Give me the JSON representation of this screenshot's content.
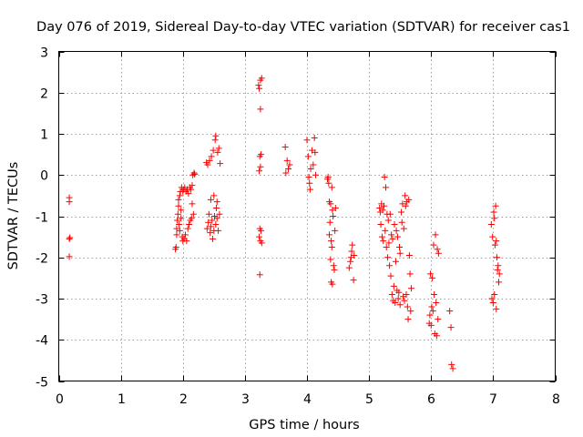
{
  "chart_data": {
    "type": "scatter",
    "title": "Day 076 of 2019, Sidereal Day-to-day VTEC variation (SDTVAR) for receiver cas1",
    "xlabel": "GPS time / hours",
    "ylabel": "SDTVAR / TECUs",
    "xlim": [
      0,
      8
    ],
    "ylim": [
      -5,
      3
    ],
    "xticks": [
      0,
      1,
      2,
      3,
      4,
      5,
      6,
      7,
      8
    ],
    "yticks": [
      -5,
      -4,
      -3,
      -2,
      -1,
      0,
      1,
      2,
      3
    ],
    "grid": true,
    "marker": "+",
    "color": "#ff0000",
    "series": [
      {
        "name": "cas1",
        "points": [
          [
            0.17,
            -0.55
          ],
          [
            0.17,
            -0.65
          ],
          [
            0.17,
            -1.55
          ],
          [
            0.18,
            -1.52
          ],
          [
            0.17,
            -1.98
          ],
          [
            1.88,
            -1.8
          ],
          [
            1.89,
            -1.75
          ],
          [
            1.9,
            -1.45
          ],
          [
            1.9,
            -1.3
          ],
          [
            1.91,
            -1.1
          ],
          [
            1.92,
            -0.95
          ],
          [
            1.93,
            -0.75
          ],
          [
            1.93,
            -0.6
          ],
          [
            1.94,
            -1.2
          ],
          [
            1.95,
            -1.35
          ],
          [
            1.95,
            -0.5
          ],
          [
            1.96,
            -0.4
          ],
          [
            1.97,
            -1.05
          ],
          [
            1.97,
            -0.85
          ],
          [
            1.98,
            -0.3
          ],
          [
            1.99,
            -1.5
          ],
          [
            2.0,
            -0.4
          ],
          [
            2.0,
            -1.6
          ],
          [
            2.01,
            -0.35
          ],
          [
            2.02,
            -1.55
          ],
          [
            2.03,
            -0.3
          ],
          [
            2.04,
            -1.45
          ],
          [
            2.05,
            -0.4
          ],
          [
            2.06,
            -1.6
          ],
          [
            2.07,
            -0.35
          ],
          [
            2.08,
            -1.3
          ],
          [
            2.09,
            -0.45
          ],
          [
            2.1,
            -1.2
          ],
          [
            2.11,
            -0.3
          ],
          [
            2.12,
            -1.1
          ],
          [
            2.13,
            -0.35
          ],
          [
            2.14,
            -1.05
          ],
          [
            2.15,
            -0.25
          ],
          [
            2.15,
            -0.7
          ],
          [
            2.16,
            0.0
          ],
          [
            2.17,
            -0.95
          ],
          [
            2.18,
            0.05
          ],
          [
            2.19,
            0.02
          ],
          [
            2.38,
            0.3
          ],
          [
            2.39,
            -1.3
          ],
          [
            2.4,
            0.25
          ],
          [
            2.41,
            -1.15
          ],
          [
            2.42,
            -0.95
          ],
          [
            2.43,
            0.35
          ],
          [
            2.44,
            -1.4
          ],
          [
            2.45,
            -0.6
          ],
          [
            2.46,
            0.45
          ],
          [
            2.47,
            -1.1
          ],
          [
            2.48,
            -1.55
          ],
          [
            2.49,
            0.6
          ],
          [
            2.5,
            -0.5
          ],
          [
            2.51,
            -1.0
          ],
          [
            2.52,
            0.85
          ],
          [
            2.53,
            0.95
          ],
          [
            2.53,
            -1.2
          ],
          [
            2.54,
            -0.8
          ],
          [
            2.55,
            -0.65
          ],
          [
            2.56,
            0.55
          ],
          [
            2.57,
            -1.35
          ],
          [
            2.58,
            0.65
          ],
          [
            2.59,
            -0.95
          ],
          [
            2.6,
            0.28
          ],
          [
            2.45,
            -1.25
          ],
          [
            2.5,
            -1.35
          ],
          [
            2.55,
            -1.05
          ],
          [
            3.23,
            2.1
          ],
          [
            3.25,
            2.3
          ],
          [
            3.27,
            2.35
          ],
          [
            3.22,
            2.18
          ],
          [
            3.25,
            1.6
          ],
          [
            3.24,
            0.45
          ],
          [
            3.26,
            0.5
          ],
          [
            3.23,
            0.1
          ],
          [
            3.25,
            0.2
          ],
          [
            3.24,
            -1.3
          ],
          [
            3.26,
            -1.35
          ],
          [
            3.23,
            -1.5
          ],
          [
            3.25,
            -1.6
          ],
          [
            3.27,
            -1.65
          ],
          [
            3.24,
            -2.42
          ],
          [
            3.65,
            0.68
          ],
          [
            3.68,
            0.35
          ],
          [
            3.7,
            0.15
          ],
          [
            3.72,
            0.25
          ],
          [
            3.66,
            0.05
          ],
          [
            4.0,
            0.85
          ],
          [
            4.02,
            0.45
          ],
          [
            4.03,
            -0.05
          ],
          [
            4.04,
            -0.2
          ],
          [
            4.05,
            -0.35
          ],
          [
            4.06,
            0.15
          ],
          [
            4.08,
            0.6
          ],
          [
            4.1,
            0.25
          ],
          [
            4.12,
            0.9
          ],
          [
            4.13,
            0.55
          ],
          [
            4.14,
            0.0
          ],
          [
            4.33,
            -0.1
          ],
          [
            4.34,
            -0.05
          ],
          [
            4.35,
            -0.2
          ],
          [
            4.36,
            -0.65
          ],
          [
            4.37,
            -1.15
          ],
          [
            4.38,
            -0.7
          ],
          [
            4.38,
            -2.05
          ],
          [
            4.39,
            -1.6
          ],
          [
            4.39,
            -2.6
          ],
          [
            4.4,
            -0.3
          ],
          [
            4.4,
            -1.75
          ],
          [
            4.41,
            -2.65
          ],
          [
            4.41,
            -0.85
          ],
          [
            4.42,
            -1.0
          ],
          [
            4.43,
            -2.2
          ],
          [
            4.44,
            -2.3
          ],
          [
            4.45,
            -1.35
          ],
          [
            4.46,
            -0.8
          ],
          [
            4.36,
            -1.45
          ],
          [
            4.68,
            -2.25
          ],
          [
            4.7,
            -2.1
          ],
          [
            4.71,
            -2.0
          ],
          [
            4.72,
            -1.85
          ],
          [
            4.73,
            -1.7
          ],
          [
            4.75,
            -2.55
          ],
          [
            4.76,
            -1.95
          ],
          [
            5.17,
            -0.8
          ],
          [
            5.18,
            -0.9
          ],
          [
            5.19,
            -1.2
          ],
          [
            5.2,
            -0.7
          ],
          [
            5.21,
            -1.5
          ],
          [
            5.22,
            -0.85
          ],
          [
            5.23,
            -1.6
          ],
          [
            5.24,
            -0.75
          ],
          [
            5.25,
            -0.05
          ],
          [
            5.26,
            -1.35
          ],
          [
            5.27,
            -0.3
          ],
          [
            5.28,
            -1.75
          ],
          [
            5.29,
            -0.95
          ],
          [
            5.3,
            -2.0
          ],
          [
            5.31,
            -1.1
          ],
          [
            5.32,
            -1.65
          ],
          [
            5.33,
            -2.2
          ],
          [
            5.34,
            -0.95
          ],
          [
            5.35,
            -2.45
          ],
          [
            5.36,
            -1.45
          ],
          [
            5.37,
            -2.9
          ],
          [
            5.38,
            -1.55
          ],
          [
            5.39,
            -3.05
          ],
          [
            5.4,
            -2.7
          ],
          [
            5.41,
            -1.2
          ],
          [
            5.42,
            -3.1
          ],
          [
            5.43,
            -2.1
          ],
          [
            5.44,
            -1.35
          ],
          [
            5.45,
            -2.8
          ],
          [
            5.46,
            -1.5
          ],
          [
            5.47,
            -3.0
          ],
          [
            5.48,
            -2.85
          ],
          [
            5.49,
            -1.75
          ],
          [
            5.5,
            -3.15
          ],
          [
            5.5,
            -1.9
          ],
          [
            5.52,
            -0.9
          ],
          [
            5.53,
            -1.15
          ],
          [
            5.54,
            -0.7
          ],
          [
            5.55,
            -2.95
          ],
          [
            5.56,
            -1.3
          ],
          [
            5.57,
            -3.05
          ],
          [
            5.58,
            -0.5
          ],
          [
            5.59,
            -0.75
          ],
          [
            5.6,
            -2.9
          ],
          [
            5.61,
            -0.65
          ],
          [
            5.62,
            -3.2
          ],
          [
            5.63,
            -3.5
          ],
          [
            5.64,
            -0.6
          ],
          [
            5.65,
            -1.95
          ],
          [
            5.66,
            -2.4
          ],
          [
            5.67,
            -3.3
          ],
          [
            5.68,
            -2.75
          ],
          [
            5.97,
            -3.6
          ],
          [
            5.98,
            -3.4
          ],
          [
            5.99,
            -2.4
          ],
          [
            6.0,
            -3.65
          ],
          [
            6.01,
            -3.2
          ],
          [
            6.02,
            -2.5
          ],
          [
            6.03,
            -3.3
          ],
          [
            6.04,
            -1.7
          ],
          [
            6.05,
            -2.9
          ],
          [
            6.06,
            -3.85
          ],
          [
            6.07,
            -1.45
          ],
          [
            6.08,
            -3.1
          ],
          [
            6.09,
            -3.9
          ],
          [
            6.1,
            -1.8
          ],
          [
            6.11,
            -3.5
          ],
          [
            6.12,
            -1.9
          ],
          [
            6.3,
            -3.3
          ],
          [
            6.32,
            -3.7
          ],
          [
            6.33,
            -4.6
          ],
          [
            6.35,
            -4.7
          ],
          [
            6.97,
            -1.2
          ],
          [
            6.98,
            -3.0
          ],
          [
            6.99,
            -1.5
          ],
          [
            7.0,
            -3.1
          ],
          [
            7.01,
            -0.9
          ],
          [
            7.02,
            -2.9
          ],
          [
            7.03,
            -1.7
          ],
          [
            7.04,
            -0.75
          ],
          [
            7.05,
            -3.25
          ],
          [
            7.06,
            -2.0
          ],
          [
            7.07,
            -2.3
          ],
          [
            7.08,
            -2.2
          ],
          [
            7.09,
            -2.6
          ],
          [
            7.1,
            -2.4
          ],
          [
            7.02,
            -1.05
          ],
          [
            7.05,
            -1.6
          ]
        ]
      }
    ]
  }
}
